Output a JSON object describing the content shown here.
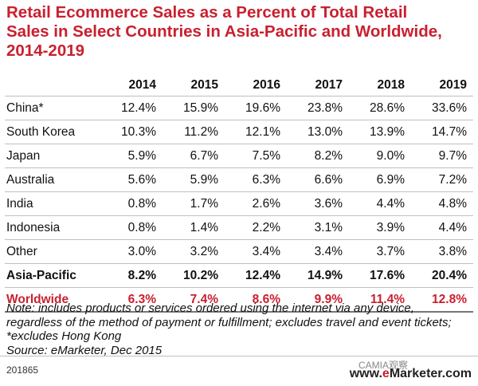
{
  "title": "Retail Ecommerce Sales as a Percent of Total Retail Sales in Select Countries in Asia-Pacific and Worldwide, 2014-2019",
  "chart_data": {
    "type": "table",
    "title": "Retail Ecommerce Sales as a Percent of Total Retail Sales in Select Countries in Asia-Pacific and Worldwide, 2014-2019",
    "columns": [
      "2014",
      "2015",
      "2016",
      "2017",
      "2018",
      "2019"
    ],
    "rows": [
      {
        "label": "China*",
        "values": [
          "12.4%",
          "15.9%",
          "19.6%",
          "23.8%",
          "28.6%",
          "33.6%"
        ]
      },
      {
        "label": "South Korea",
        "values": [
          "10.3%",
          "11.2%",
          "12.1%",
          "13.0%",
          "13.9%",
          "14.7%"
        ]
      },
      {
        "label": "Japan",
        "values": [
          "5.9%",
          "6.7%",
          "7.5%",
          "8.2%",
          "9.0%",
          "9.7%"
        ]
      },
      {
        "label": "Australia",
        "values": [
          "5.6%",
          "5.9%",
          "6.3%",
          "6.6%",
          "6.9%",
          "7.2%"
        ]
      },
      {
        "label": "India",
        "values": [
          "0.8%",
          "1.7%",
          "2.6%",
          "3.6%",
          "4.4%",
          "4.8%"
        ]
      },
      {
        "label": "Indonesia",
        "values": [
          "0.8%",
          "1.4%",
          "2.2%",
          "3.1%",
          "3.9%",
          "4.4%"
        ]
      },
      {
        "label": "Other",
        "values": [
          "3.0%",
          "3.2%",
          "3.4%",
          "3.4%",
          "3.7%",
          "3.8%"
        ]
      },
      {
        "label": "Asia-Pacific",
        "values": [
          "8.2%",
          "10.2%",
          "12.4%",
          "14.9%",
          "17.6%",
          "20.4%"
        ],
        "style": "bold"
      },
      {
        "label": "Worldwide",
        "values": [
          "6.3%",
          "7.4%",
          "8.6%",
          "9.9%",
          "11.4%",
          "12.8%"
        ],
        "style": "red"
      }
    ]
  },
  "note": "Note: includes products or services ordered using the internet via any device, regardless of the method of payment or fulfillment; excludes travel and event tickets; *excludes Hong Kong",
  "source": "Source: eMarketer, Dec 2015",
  "chart_id": "201865",
  "watermark": "CAMIA观察",
  "logo": {
    "prefix": "www.",
    "e": "e",
    "rest": "Marketer.com"
  },
  "colors": {
    "accent": "#c9202f",
    "text": "#111111",
    "rule": "#bfbfbf"
  }
}
